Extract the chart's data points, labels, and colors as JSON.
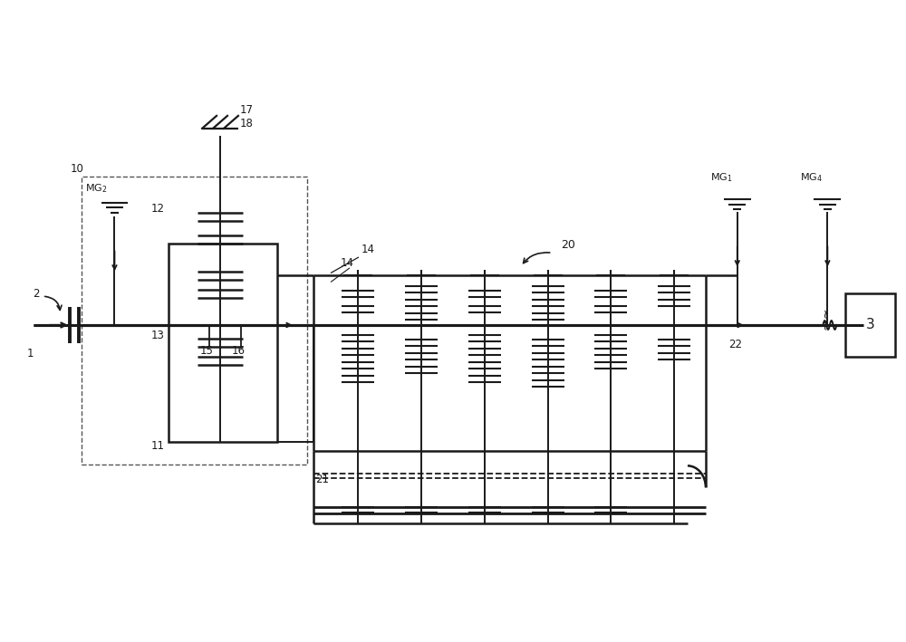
{
  "bg_color": "#ffffff",
  "lc": "#1a1a1a",
  "lw_main": 1.8,
  "lw_thick": 2.5,
  "lw_thin": 1.3,
  "fig_w": 10.0,
  "fig_h": 7.09
}
